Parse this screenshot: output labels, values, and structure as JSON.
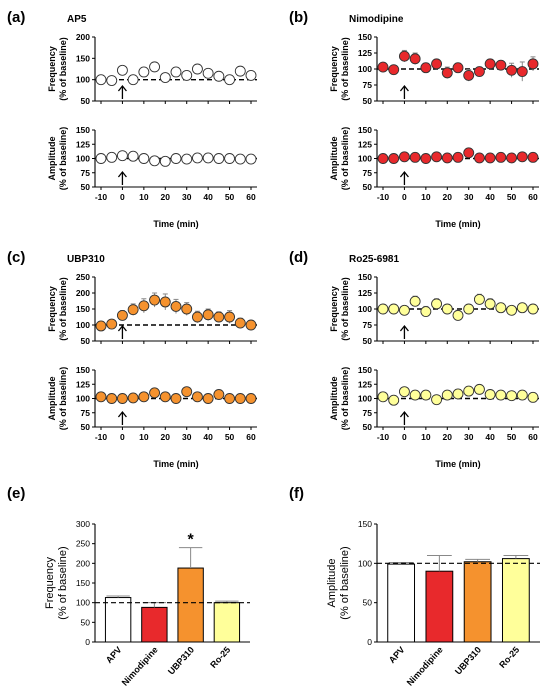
{
  "colors": {
    "ap5": "#ffffff",
    "nimodipine": "#e8292c",
    "ubp310": "#f5922e",
    "ro25": "#ffff9a",
    "axis": "#000000",
    "error": "#888888"
  },
  "chart_data": [
    {
      "panel": "(a)",
      "title": "AP5",
      "type": "scatter",
      "color": "#ffffff",
      "x": [
        -10,
        -5,
        0,
        5,
        10,
        15,
        20,
        25,
        30,
        35,
        40,
        45,
        50,
        55,
        60
      ],
      "xticks": [
        -10,
        0,
        10,
        20,
        30,
        40,
        50,
        60
      ],
      "freq": {
        "ylabel": [
          "Frequency",
          "(% of baseline)"
        ],
        "ylim": [
          50,
          200
        ],
        "yticks": [
          50,
          100,
          150,
          200
        ],
        "y": [
          100,
          98,
          122,
          100,
          118,
          130,
          105,
          118,
          110,
          125,
          115,
          108,
          100,
          120,
          110
        ],
        "err": [
          5,
          5,
          8,
          6,
          8,
          10,
          6,
          8,
          6,
          8,
          6,
          6,
          6,
          8,
          6
        ]
      },
      "amp": {
        "ylabel": [
          "Amplitude",
          "(% of baseline)"
        ],
        "ylim": [
          50,
          150
        ],
        "yticks": [
          50,
          75,
          100,
          125,
          150
        ],
        "y": [
          100,
          102,
          105,
          104,
          100,
          96,
          95,
          100,
          99,
          101,
          101,
          100,
          100,
          99,
          99
        ],
        "err": [
          3,
          3,
          3,
          3,
          3,
          3,
          3,
          3,
          3,
          3,
          3,
          3,
          3,
          3,
          3
        ]
      },
      "xlabel": "Time (min)"
    },
    {
      "panel": "(b)",
      "title": "Nimodipine",
      "type": "scatter",
      "color": "#e8292c",
      "x": [
        -10,
        -5,
        0,
        5,
        10,
        15,
        20,
        25,
        30,
        35,
        40,
        45,
        50,
        55,
        60
      ],
      "xticks": [
        -10,
        0,
        10,
        20,
        30,
        40,
        50,
        60
      ],
      "freq": {
        "ylabel": [
          "Frequency",
          "(% of baseline)"
        ],
        "ylim": [
          50,
          150
        ],
        "yticks": [
          50,
          75,
          100,
          125,
          150
        ],
        "y": [
          103,
          99,
          120,
          116,
          102,
          108,
          94,
          102,
          90,
          96,
          108,
          106,
          98,
          96,
          108
        ],
        "err": [
          5,
          5,
          9,
          9,
          7,
          7,
          9,
          7,
          9,
          7,
          7,
          7,
          11,
          15,
          11
        ]
      },
      "amp": {
        "ylabel": [
          "Amplitude",
          "(% of baseline)"
        ],
        "ylim": [
          50,
          150
        ],
        "yticks": [
          50,
          75,
          100,
          125,
          150
        ],
        "y": [
          100,
          100,
          103,
          102,
          100,
          103,
          101,
          102,
          110,
          101,
          101,
          102,
          101,
          103,
          102
        ],
        "err": [
          3,
          3,
          3,
          3,
          3,
          3,
          3,
          3,
          3,
          3,
          3,
          3,
          3,
          3,
          3
        ]
      },
      "xlabel": "Time (min)"
    },
    {
      "panel": "(c)",
      "title": "UBP310",
      "type": "scatter",
      "color": "#f5922e",
      "x": [
        -10,
        -5,
        0,
        5,
        10,
        15,
        20,
        25,
        30,
        35,
        40,
        45,
        50,
        55,
        60
      ],
      "xticks": [
        -10,
        0,
        10,
        20,
        30,
        40,
        50,
        60
      ],
      "freq": {
        "ylabel": [
          "Frequency",
          "(% of baseline)"
        ],
        "ylim": [
          50,
          250
        ],
        "yticks": [
          50,
          100,
          150,
          200,
          250
        ],
        "y": [
          97,
          103,
          130,
          148,
          160,
          178,
          172,
          158,
          150,
          125,
          132,
          125,
          125,
          106,
          100
        ],
        "err": [
          6,
          8,
          15,
          18,
          22,
          22,
          25,
          22,
          20,
          18,
          18,
          16,
          20,
          15,
          8
        ]
      },
      "amp": {
        "ylabel": [
          "Amplitude",
          "(% of baseline)"
        ],
        "ylim": [
          50,
          150
        ],
        "yticks": [
          50,
          75,
          100,
          125,
          150
        ],
        "y": [
          103,
          100,
          100,
          101,
          103,
          110,
          103,
          100,
          112,
          103,
          100,
          107,
          100,
          100,
          100
        ],
        "err": [
          3,
          3,
          3,
          3,
          4,
          6,
          4,
          3,
          6,
          4,
          4,
          5,
          3,
          3,
          3
        ]
      },
      "xlabel": "Time (min)"
    },
    {
      "panel": "(d)",
      "title": "Ro25-6981",
      "type": "scatter",
      "color": "#ffff9a",
      "x": [
        -10,
        -5,
        0,
        5,
        10,
        15,
        20,
        25,
        30,
        35,
        40,
        45,
        50,
        55,
        60
      ],
      "xticks": [
        -10,
        0,
        10,
        20,
        30,
        40,
        50,
        60
      ],
      "freq": {
        "ylabel": [
          "Frequency",
          "(% of baseline)"
        ],
        "ylim": [
          50,
          150
        ],
        "yticks": [
          50,
          75,
          100,
          125,
          150
        ],
        "y": [
          100,
          100,
          98,
          112,
          96,
          108,
          100,
          90,
          100,
          115,
          108,
          102,
          98,
          102,
          100
        ],
        "err": [
          5,
          5,
          6,
          8,
          8,
          8,
          6,
          8,
          6,
          8,
          8,
          6,
          6,
          6,
          6
        ]
      },
      "amp": {
        "ylabel": [
          "Amplitude",
          "(% of baseline)"
        ],
        "ylim": [
          50,
          150
        ],
        "yticks": [
          50,
          75,
          100,
          125,
          150
        ],
        "y": [
          103,
          97,
          112,
          106,
          106,
          98,
          106,
          108,
          113,
          116,
          107,
          106,
          105,
          106,
          102
        ],
        "err": [
          4,
          4,
          5,
          5,
          5,
          5,
          5,
          5,
          6,
          7,
          5,
          5,
          5,
          5,
          5
        ]
      },
      "xlabel": "Time (min)"
    },
    {
      "panel": "(e)",
      "type": "bar",
      "categories": [
        "APV",
        "Nimodipine",
        "UBP310",
        "Ro-25"
      ],
      "values": [
        113,
        88,
        188,
        100
      ],
      "errors": [
        4,
        12,
        52,
        4
      ],
      "colors": [
        "#ffffff",
        "#e8292c",
        "#f5922e",
        "#ffff9a"
      ],
      "ylabel": [
        "Frequency",
        "(% of baseline)"
      ],
      "ylim": [
        0,
        300
      ],
      "yticks": [
        0,
        50,
        100,
        150,
        200,
        250,
        300
      ],
      "reference": 100,
      "annotations": [
        {
          "category": "UBP310",
          "text": "*"
        }
      ]
    },
    {
      "panel": "(f)",
      "type": "bar",
      "categories": [
        "APV",
        "Nimodipine",
        "UBP310",
        "Ro-25"
      ],
      "values": [
        99,
        90,
        102,
        106
      ],
      "errors": [
        2,
        20,
        3,
        4
      ],
      "colors": [
        "#ffffff",
        "#e8292c",
        "#f5922e",
        "#ffff9a"
      ],
      "ylabel": [
        "Amplitude",
        "(% of baseline)"
      ],
      "ylim": [
        0,
        150
      ],
      "yticks": [
        0,
        50,
        100,
        150
      ],
      "reference": 100,
      "annotations": []
    }
  ]
}
